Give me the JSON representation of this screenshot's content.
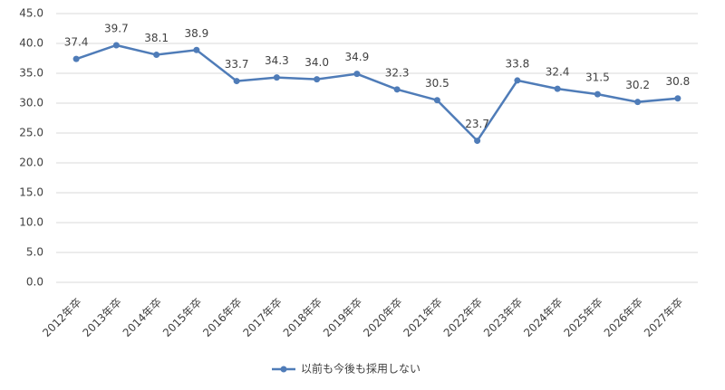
{
  "chart_data": {
    "type": "line",
    "categories": [
      "2012年卒",
      "2013年卒",
      "2014年卒",
      "2015年卒",
      "2016年卒",
      "2017年卒",
      "2018年卒",
      "2019年卒",
      "2020年卒",
      "2021年卒",
      "2022年卒",
      "2023年卒",
      "2024年卒",
      "2025年卒",
      "2026年卒",
      "2027年卒"
    ],
    "series": [
      {
        "name": "以前も今後も採用しない",
        "color": "#4f7cb8",
        "values": [
          37.4,
          39.7,
          38.1,
          38.9,
          33.7,
          34.3,
          34.0,
          34.9,
          32.3,
          30.5,
          23.7,
          33.8,
          32.4,
          31.5,
          30.2,
          30.8
        ],
        "value_labels": [
          "37.4",
          "39.7",
          "38.1",
          "38.9",
          "33.7",
          "34.3",
          "34.0",
          "34.9",
          "32.3",
          "30.5",
          "23.7",
          "33.8",
          "32.4",
          "31.5",
          "30.2",
          "30.8"
        ]
      }
    ],
    "ylim": [
      0,
      45
    ],
    "yticks": [
      {
        "value": 0,
        "label": "0.0"
      },
      {
        "value": 5,
        "label": "5.0"
      },
      {
        "value": 10,
        "label": "10.0"
      },
      {
        "value": 15,
        "label": "15.0"
      },
      {
        "value": 20,
        "label": "20.0"
      },
      {
        "value": 25,
        "label": "25.0"
      },
      {
        "value": 30,
        "label": "30.0"
      },
      {
        "value": 35,
        "label": "35.0"
      },
      {
        "value": 40,
        "label": "40.0"
      },
      {
        "value": 45,
        "label": "45.0"
      }
    ],
    "grid": true,
    "legend": "bottom"
  }
}
